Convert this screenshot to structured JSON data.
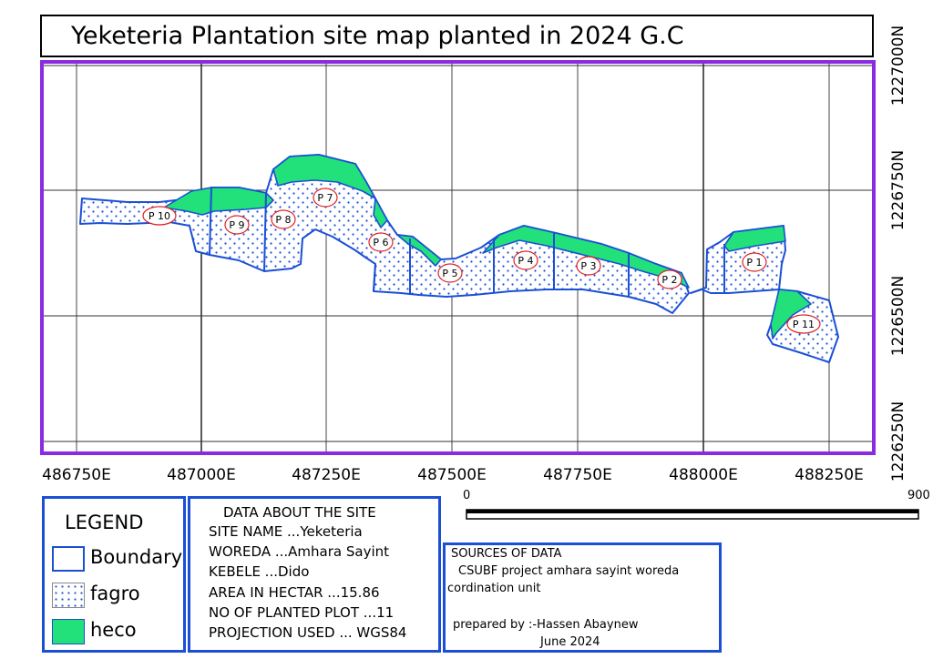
{
  "title": "Yeketeria Plantation site map planted in 2024 G.C",
  "x_axis_labels": [
    "486750E",
    "487000E",
    "487250E",
    "487500E",
    "487750E",
    "488000E",
    "488250E"
  ],
  "y_axis_labels": [
    "1227000N",
    "1226750N",
    "1226500N",
    "1226250N"
  ],
  "plot_labels": [
    "P 10",
    "P 9",
    "P 8",
    "P 7",
    "P 6",
    "P 5",
    "P 4",
    "P 3",
    "P 2",
    "P 1",
    "P 11"
  ],
  "scale_bar": {
    "start": "0",
    "end": "900"
  },
  "legend": {
    "title": "LEGEND",
    "items": [
      {
        "label": "Boundary",
        "style": "boundary"
      },
      {
        "label": "fagro",
        "style": "dots"
      },
      {
        "label": "heco",
        "style": "green"
      }
    ]
  },
  "site_data": {
    "title": "DATA ABOUT THE SITE",
    "lines": [
      "SITE NAME ...Yeketeria",
      "WOREDA ...Amhara Sayint",
      "KEBELE ...Dido",
      "AREA IN HECTAR ...15.86",
      "NO OF PLANTED PLOT ...11",
      "PROJECTION USED ... WGS84"
    ]
  },
  "sources": {
    "title": "SOURCES OF DATA",
    "line1": "CSUBF  project  amhara  sayint  woreda",
    "line2": "cordination unit",
    "prepared": "prepared by :-Hassen Abaynew",
    "date": "June 2024"
  },
  "colors": {
    "frame": "#8a2be2",
    "boundary": "#1a4fd6",
    "heco": "#22e07a",
    "dots": "#1a4fd6",
    "label_circle": "#e02020"
  }
}
